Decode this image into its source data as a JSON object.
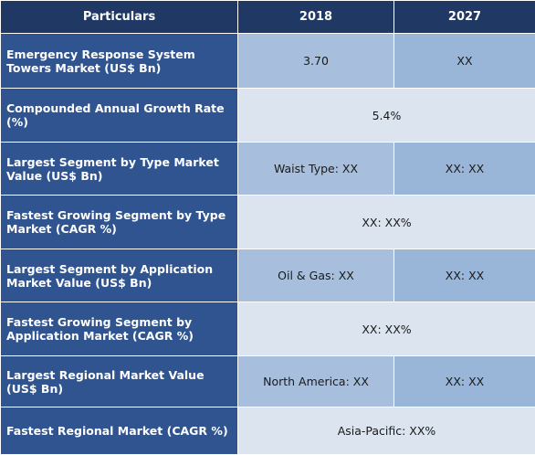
{
  "table": {
    "headers": [
      "Particulars",
      "2018",
      "2027"
    ],
    "rows": [
      {
        "label": "Emergency Response System Towers Market (US$ Bn)",
        "v2018": "3.70",
        "v2027": "XX"
      },
      {
        "label": "Compounded Annual Growth Rate (%)",
        "span": "5.4%"
      },
      {
        "label": "Largest Segment by Type Market Value (US$ Bn)",
        "v2018": "Waist Type: XX",
        "v2027": "XX: XX"
      },
      {
        "label": "Fastest Growing Segment by Type Market (CAGR %)",
        "span": "XX: XX%"
      },
      {
        "label": "Largest Segment by Application Market Value (US$ Bn)",
        "v2018": "Oil & Gas: XX",
        "v2027": "XX: XX"
      },
      {
        "label": "Fastest Growing Segment by Application Market (CAGR %)",
        "span": "XX: XX%"
      },
      {
        "label": "Largest Regional Market Value (US$ Bn)",
        "v2018": "North America: XX",
        "v2027": "XX: XX"
      },
      {
        "label": "Fastest Regional Market (CAGR %)",
        "span": "Asia-Pacific: XX%"
      }
    ]
  }
}
